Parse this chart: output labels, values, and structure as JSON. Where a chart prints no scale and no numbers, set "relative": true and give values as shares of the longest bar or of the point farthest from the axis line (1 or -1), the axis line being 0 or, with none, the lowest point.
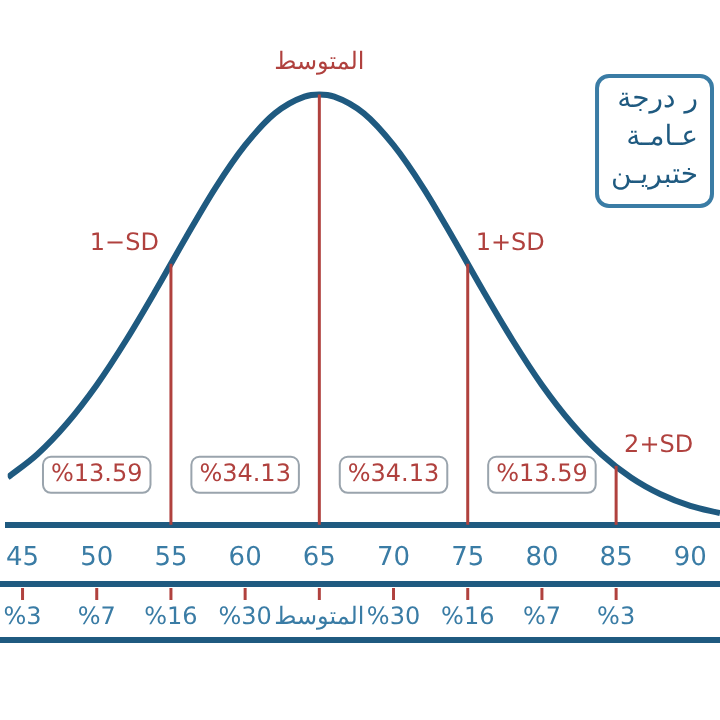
{
  "chart_data": {
    "type": "line",
    "relative": true,
    "xlim": [
      44,
      92
    ],
    "xticks": [
      45,
      50,
      55,
      60,
      65,
      70,
      75,
      80,
      85,
      90
    ],
    "series": [
      {
        "color": "#1f5a80",
        "x": [
          44,
          46,
          48,
          50,
          52,
          54,
          56,
          58,
          60,
          62,
          64,
          65,
          66,
          68,
          70,
          72,
          74,
          76,
          78,
          80,
          82,
          84,
          86,
          88,
          90,
          92
        ],
        "values": [
          0.11,
          0.164,
          0.236,
          0.325,
          0.43,
          0.546,
          0.667,
          0.783,
          0.882,
          0.956,
          0.995,
          1,
          0.995,
          0.956,
          0.882,
          0.783,
          0.667,
          0.546,
          0.43,
          0.325,
          0.236,
          0.164,
          0.11,
          0.071,
          0.044,
          0.027
        ]
      }
    ],
    "ref_lines": [
      {
        "axis": "x",
        "value": 55,
        "label": "1−SD",
        "color": "#b0413e"
      },
      {
        "axis": "x",
        "value": 65,
        "label": "المتوسط",
        "color": "#b0413e"
      },
      {
        "axis": "x",
        "value": 75,
        "label": "1+SD",
        "color": "#b0413e"
      },
      {
        "axis": "x",
        "value": 85,
        "label": "2+SD",
        "color": "#b0413e"
      }
    ],
    "annotations": [
      "ر درجة\nعـامـة\nختبريـن",
      "%13.59",
      "%34.13",
      "%34.13",
      "%13.59",
      "%3",
      "%7",
      "%16",
      "%30",
      "المتوسط",
      "%30",
      "%16",
      "%7",
      "%3"
    ],
    "grid": false,
    "legend": false,
    "marker": "none",
    "line_style": "solid"
  }
}
